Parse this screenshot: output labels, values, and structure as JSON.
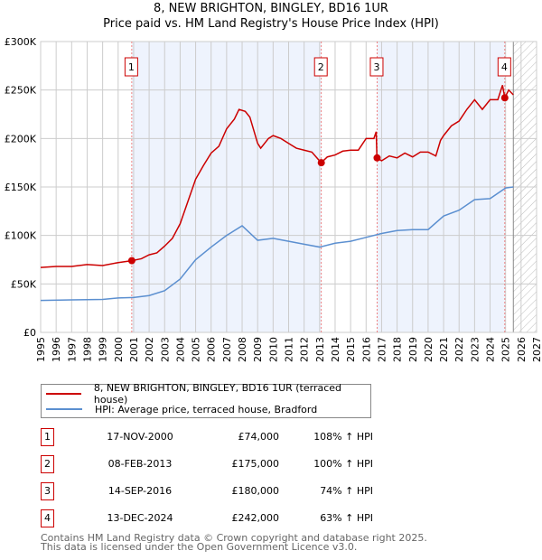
{
  "chart_data": {
    "type": "line",
    "title": "8, NEW BRIGHTON, BINGLEY, BD16 1UR",
    "subtitle": "Price paid vs. HM Land Registry's House Price Index (HPI)",
    "xlim": [
      1995,
      2027
    ],
    "ylim": [
      0,
      300000
    ],
    "x_ticks": [
      "1995",
      "1996",
      "1997",
      "1998",
      "1999",
      "2000",
      "2001",
      "2002",
      "2003",
      "2004",
      "2005",
      "2006",
      "2007",
      "2008",
      "2009",
      "2010",
      "2011",
      "2012",
      "2013",
      "2014",
      "2015",
      "2016",
      "2017",
      "2018",
      "2019",
      "2020",
      "2021",
      "2022",
      "2023",
      "2024",
      "2025",
      "2026",
      "2027"
    ],
    "y_ticks": [
      {
        "v": 0,
        "label": "£0"
      },
      {
        "v": 50000,
        "label": "£50K"
      },
      {
        "v": 100000,
        "label": "£100K"
      },
      {
        "v": 150000,
        "label": "£150K"
      },
      {
        "v": 200000,
        "label": "£200K"
      },
      {
        "v": 250000,
        "label": "£250K"
      },
      {
        "v": 300000,
        "label": "£300K"
      }
    ],
    "grid": true,
    "forecast_from": 2025.5,
    "series": [
      {
        "name": "8, NEW BRIGHTON, BINGLEY, BD16 1UR (terraced house)",
        "color": "#cc0000",
        "points": [
          [
            1995,
            67000
          ],
          [
            1996,
            68000
          ],
          [
            1997,
            68000
          ],
          [
            1998,
            70000
          ],
          [
            1999,
            69000
          ],
          [
            2000,
            72000
          ],
          [
            2000.88,
            74000
          ],
          [
            2001.5,
            76000
          ],
          [
            2002,
            80000
          ],
          [
            2002.5,
            82000
          ],
          [
            2003,
            89000
          ],
          [
            2003.5,
            97000
          ],
          [
            2004,
            112000
          ],
          [
            2004.5,
            135000
          ],
          [
            2005,
            158000
          ],
          [
            2005.5,
            172000
          ],
          [
            2006,
            185000
          ],
          [
            2006.5,
            192000
          ],
          [
            2007,
            210000
          ],
          [
            2007.5,
            220000
          ],
          [
            2007.8,
            230000
          ],
          [
            2008.2,
            228000
          ],
          [
            2008.5,
            222000
          ],
          [
            2009,
            195000
          ],
          [
            2009.2,
            190000
          ],
          [
            2009.7,
            200000
          ],
          [
            2010,
            203000
          ],
          [
            2010.5,
            200000
          ],
          [
            2011,
            195000
          ],
          [
            2011.5,
            190000
          ],
          [
            2012,
            188000
          ],
          [
            2012.5,
            186000
          ],
          [
            2013.1,
            175000
          ],
          [
            2013.5,
            181000
          ],
          [
            2014,
            183000
          ],
          [
            2014.5,
            187000
          ],
          [
            2015,
            188000
          ],
          [
            2015.5,
            188000
          ],
          [
            2016,
            200000
          ],
          [
            2016.5,
            200000
          ],
          [
            2016.65,
            207000
          ],
          [
            2016.7,
            180000
          ],
          [
            2017,
            177000
          ],
          [
            2017.5,
            182000
          ],
          [
            2018,
            180000
          ],
          [
            2018.5,
            185000
          ],
          [
            2019,
            181000
          ],
          [
            2019.5,
            186000
          ],
          [
            2020,
            186000
          ],
          [
            2020.5,
            182000
          ],
          [
            2020.8,
            198000
          ],
          [
            2021,
            203000
          ],
          [
            2021.5,
            213000
          ],
          [
            2022,
            218000
          ],
          [
            2022.5,
            230000
          ],
          [
            2023,
            240000
          ],
          [
            2023.5,
            230000
          ],
          [
            2024,
            240000
          ],
          [
            2024.5,
            240000
          ],
          [
            2024.8,
            255000
          ],
          [
            2024.95,
            242000
          ],
          [
            2025.2,
            250000
          ],
          [
            2025.5,
            245000
          ]
        ]
      },
      {
        "name": "HPI: Average price, terraced house, Bradford",
        "color": "#5b8fd0",
        "points": [
          [
            1995,
            33000
          ],
          [
            1997,
            33500
          ],
          [
            1999,
            34000
          ],
          [
            2000,
            35500
          ],
          [
            2001,
            36000
          ],
          [
            2002,
            38000
          ],
          [
            2003,
            43000
          ],
          [
            2004,
            55000
          ],
          [
            2005,
            75000
          ],
          [
            2006,
            88000
          ],
          [
            2007,
            100000
          ],
          [
            2008,
            110000
          ],
          [
            2009,
            95000
          ],
          [
            2010,
            97000
          ],
          [
            2011,
            94000
          ],
          [
            2012,
            91000
          ],
          [
            2013,
            88000
          ],
          [
            2014,
            92000
          ],
          [
            2015,
            94000
          ],
          [
            2016,
            98000
          ],
          [
            2017,
            102000
          ],
          [
            2018,
            105000
          ],
          [
            2019,
            106000
          ],
          [
            2020,
            106000
          ],
          [
            2021,
            120000
          ],
          [
            2022,
            126000
          ],
          [
            2023,
            137000
          ],
          [
            2024,
            138000
          ],
          [
            2025,
            149000
          ],
          [
            2025.5,
            150000
          ]
        ]
      }
    ],
    "sales": [
      {
        "n": "1",
        "x": 2000.88,
        "price": 74000,
        "date": "17-NOV-2000",
        "price_label": "£74,000",
        "hpi": "108% ↑ HPI"
      },
      {
        "n": "2",
        "x": 2013.11,
        "price": 175000,
        "date": "08-FEB-2013",
        "price_label": "£175,000",
        "hpi": "100% ↑ HPI"
      },
      {
        "n": "3",
        "x": 2016.71,
        "price": 180000,
        "date": "14-SEP-2016",
        "price_label": "£180,000",
        "hpi": "74% ↑ HPI"
      },
      {
        "n": "4",
        "x": 2024.95,
        "price": 242000,
        "date": "13-DEC-2024",
        "price_label": "£242,000",
        "hpi": "63% ↑ HPI"
      }
    ]
  },
  "footer": {
    "line1": "Contains HM Land Registry data © Crown copyright and database right 2025.",
    "line2": "This data is licensed under the Open Government Licence v3.0."
  }
}
